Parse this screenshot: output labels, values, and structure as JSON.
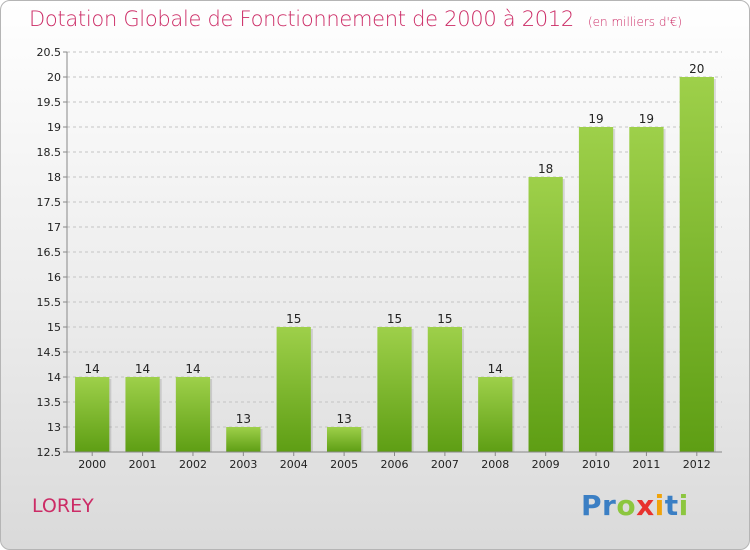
{
  "title": "Dotation Globale de Fonctionnement de 2000 à 2012",
  "unit_note": "(en milliers d'€)",
  "commune": "LOREY",
  "logo": {
    "text": "Proxiti",
    "letters": [
      {
        "ch": "P",
        "color": "#3b7fc4"
      },
      {
        "ch": "r",
        "color": "#3b7fc4"
      },
      {
        "ch": "o",
        "color": "#8cc63f"
      },
      {
        "ch": "x",
        "color": "#e8322e"
      },
      {
        "ch": "i",
        "color": "#f0a30a"
      },
      {
        "ch": "t",
        "color": "#3b7fc4"
      },
      {
        "ch": "i",
        "color": "#8cc63f"
      }
    ]
  },
  "colors": {
    "title": "#cc2c66",
    "bar_light": "#9ed04a",
    "bar_dark": "#5e9e14",
    "grid": "#c4c4c4",
    "axis_text": "#222222"
  },
  "chart_data": {
    "type": "bar",
    "categories": [
      "2000",
      "2001",
      "2002",
      "2003",
      "2004",
      "2005",
      "2006",
      "2007",
      "2008",
      "2009",
      "2010",
      "2011",
      "2012"
    ],
    "values": [
      14,
      14,
      14,
      13,
      15,
      13,
      15,
      15,
      14,
      18,
      19,
      19,
      20
    ],
    "value_labels": [
      "14",
      "14",
      "14",
      "13",
      "15",
      "13",
      "15",
      "15",
      "14",
      "18",
      "19",
      "19",
      "20"
    ],
    "ylim": [
      12.5,
      20.5
    ],
    "yticks": [
      12.5,
      13,
      13.5,
      14,
      14.5,
      15,
      15.5,
      16,
      16.5,
      17,
      17.5,
      18,
      18.5,
      19,
      19.5,
      20,
      20.5
    ],
    "ytick_labels": [
      "12.5",
      "13",
      "13.5",
      "14",
      "14.5",
      "15",
      "15.5",
      "16",
      "16.5",
      "17",
      "17.5",
      "18",
      "18.5",
      "19",
      "19.5",
      "20",
      "20.5"
    ],
    "grid": true,
    "legend": "none"
  }
}
